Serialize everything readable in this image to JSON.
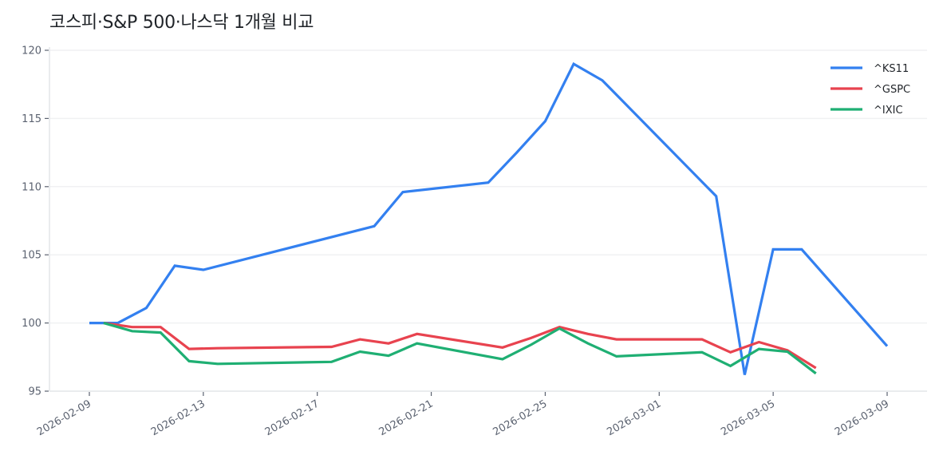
{
  "title": "코스피·S&P 500·나스닥 1개월 비교",
  "chart_data": {
    "type": "line",
    "title": "코스피·S&P 500·나스닥 1개월 비교",
    "xlabel": "",
    "ylabel": "",
    "ylim": [
      95,
      120
    ],
    "yticks": [
      95,
      100,
      105,
      110,
      115,
      120
    ],
    "xticks": [
      "2026-02-09",
      "2026-02-13",
      "2026-02-17",
      "2026-02-21",
      "2026-02-25",
      "2026-03-01",
      "2026-03-05",
      "2026-03-09"
    ],
    "xrange": [
      "2026-02-07.9",
      "2026-03-10.4"
    ],
    "grid": "horizontal",
    "legend_position": "upper right",
    "series": [
      {
        "name": "^KS11",
        "color": "#3380f0",
        "x_offset_days": 0,
        "points": [
          [
            "2026-02-09",
            100.0
          ],
          [
            "2026-02-10",
            100.0
          ],
          [
            "2026-02-11",
            101.1
          ],
          [
            "2026-02-12",
            104.2
          ],
          [
            "2026-02-13",
            103.9
          ],
          [
            "2026-02-19",
            107.1
          ],
          [
            "2026-02-20",
            109.6
          ],
          [
            "2026-02-23",
            110.3
          ],
          [
            "2026-02-24",
            112.5
          ],
          [
            "2026-02-25",
            114.8
          ],
          [
            "2026-02-26",
            119.0
          ],
          [
            "2026-02-27",
            117.8
          ],
          [
            "2026-03-03",
            109.3
          ],
          [
            "2026-03-04",
            96.2
          ],
          [
            "2026-03-05",
            105.4
          ],
          [
            "2026-03-06",
            105.4
          ],
          [
            "2026-03-09",
            98.3
          ]
        ]
      },
      {
        "name": "^GSPC",
        "color": "#e8434f",
        "x_offset_days": 0.5,
        "points": [
          [
            "2026-02-09",
            100.0
          ],
          [
            "2026-02-10",
            99.7
          ],
          [
            "2026-02-11",
            99.7
          ],
          [
            "2026-02-12",
            98.1
          ],
          [
            "2026-02-13",
            98.15
          ],
          [
            "2026-02-17",
            98.25
          ],
          [
            "2026-02-18",
            98.8
          ],
          [
            "2026-02-19",
            98.5
          ],
          [
            "2026-02-20",
            99.2
          ],
          [
            "2026-02-23",
            98.2
          ],
          [
            "2026-02-24",
            98.9
          ],
          [
            "2026-02-25",
            99.7
          ],
          [
            "2026-02-26",
            99.2
          ],
          [
            "2026-02-27",
            98.8
          ],
          [
            "2026-03-02",
            98.8
          ],
          [
            "2026-03-03",
            97.85
          ],
          [
            "2026-03-04",
            98.6
          ],
          [
            "2026-03-05",
            98.0
          ],
          [
            "2026-03-06",
            96.7
          ]
        ]
      },
      {
        "name": "^IXIC",
        "color": "#1faf73",
        "x_offset_days": 0.5,
        "points": [
          [
            "2026-02-09",
            100.0
          ],
          [
            "2026-02-10",
            99.4
          ],
          [
            "2026-02-11",
            99.3
          ],
          [
            "2026-02-12",
            97.2
          ],
          [
            "2026-02-13",
            97.0
          ],
          [
            "2026-02-17",
            97.15
          ],
          [
            "2026-02-18",
            97.9
          ],
          [
            "2026-02-19",
            97.6
          ],
          [
            "2026-02-20",
            98.5
          ],
          [
            "2026-02-23",
            97.35
          ],
          [
            "2026-02-24",
            98.4
          ],
          [
            "2026-02-25",
            99.6
          ],
          [
            "2026-02-26",
            98.5
          ],
          [
            "2026-02-27",
            97.55
          ],
          [
            "2026-03-02",
            97.85
          ],
          [
            "2026-03-03",
            96.85
          ],
          [
            "2026-03-04",
            98.1
          ],
          [
            "2026-03-05",
            97.9
          ],
          [
            "2026-03-06",
            96.3
          ]
        ]
      }
    ]
  },
  "colors": {
    "grid": "#f0f1f3",
    "axis": "#e3e5e9",
    "tick": "#5b6270"
  }
}
